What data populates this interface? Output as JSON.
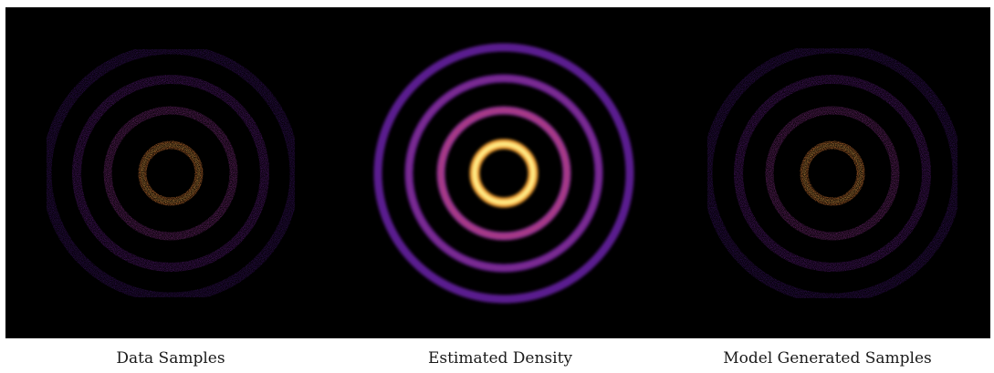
{
  "panels": [
    {
      "id": "data",
      "caption": "Data Samples"
    },
    {
      "id": "density",
      "caption": "Estimated Density"
    },
    {
      "id": "model",
      "caption": "Model Generated Samples"
    }
  ],
  "colors": {
    "background": "#000000",
    "colormap": "inferno",
    "ring_colors": [
      "#ffb627",
      "#8a2f8c",
      "#6a1f90",
      "#4d1a86"
    ]
  }
}
